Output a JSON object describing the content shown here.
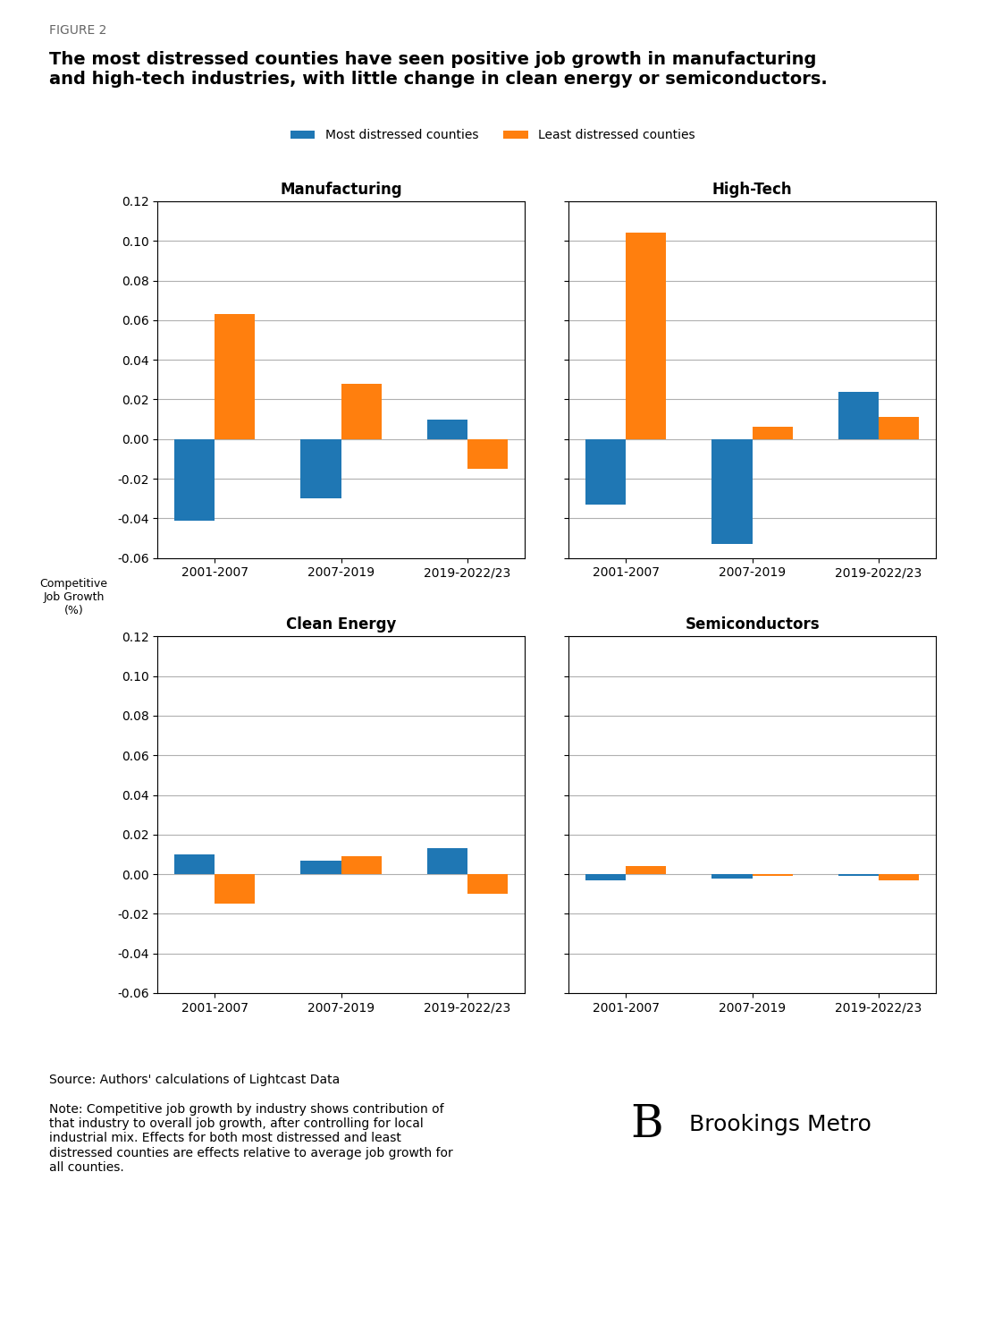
{
  "title": "The most distressed counties have seen positive job growth in manufacturing\nand high-tech industries, with little change in clean energy or semiconductors.",
  "ylabel": "Competitive\nJob Growth\n(%)",
  "legend": "upper center",
  "annotations": [
    "FIGURE 2",
    "Source: Authors' calculations of Lightcast Data",
    "Note: Competitive job growth by industry shows contribution of\nthat industry to overall job growth, after controlling for local\nindustrial mix. Effects for both most distressed and least\ndistressed counties are effects relative to average job growth for\nall counties.",
    "B",
    "Brookings Metro"
  ],
  "chart_data": [
    {
      "type": "bar",
      "title": "Manufacturing",
      "categories": [
        "2001-2007",
        "2007-2019",
        "2019-2022/23"
      ],
      "series": [
        {
          "name": "Most distressed counties",
          "values": [
            -0.041,
            -0.03,
            0.01
          ]
        },
        {
          "name": "Least distressed counties",
          "values": [
            0.063,
            0.028,
            -0.015
          ]
        }
      ],
      "ylim": [
        -0.06,
        0.12
      ],
      "yticks": [
        -0.06,
        -0.04,
        -0.02,
        {
          "value": 0.0,
          "label": "0.00"
        },
        0.02,
        0.04,
        0.06,
        0.08,
        {
          "value": 0.1,
          "label": "0.10"
        },
        0.12
      ],
      "grid": "y"
    },
    {
      "type": "bar",
      "title": "High-Tech",
      "categories": [
        "2001-2007",
        "2007-2019",
        "2019-2022/23"
      ],
      "series": [
        {
          "name": "Most distressed counties",
          "values": [
            -0.033,
            -0.053,
            0.024
          ]
        },
        {
          "name": "Least distressed counties",
          "values": [
            0.104,
            0.006,
            0.011
          ]
        }
      ],
      "ylim": [
        -0.06,
        0.12
      ],
      "yticks": [
        -0.06,
        -0.04,
        -0.02,
        {
          "value": 0.0,
          "label": "0.00"
        },
        0.02,
        0.04,
        0.06,
        0.08,
        {
          "value": 0.1,
          "label": "0.10"
        },
        0.12
      ],
      "grid": "y",
      "tick_labels": "x"
    },
    {
      "type": "bar",
      "title": "Clean Energy",
      "categories": [
        "2001-2007",
        "2007-2019",
        "2019-2022/23"
      ],
      "series": [
        {
          "name": "Most distressed counties",
          "values": [
            0.01,
            0.007,
            0.013
          ]
        },
        {
          "name": "Least distressed counties",
          "values": [
            -0.015,
            0.009,
            -0.01
          ]
        }
      ],
      "ylim": [
        -0.06,
        0.12
      ],
      "yticks": [
        -0.06,
        -0.04,
        -0.02,
        {
          "value": 0.0,
          "label": "0.00"
        },
        0.02,
        0.04,
        0.06,
        0.08,
        {
          "value": 0.1,
          "label": "0.10"
        },
        0.12
      ],
      "grid": "y"
    },
    {
      "type": "bar",
      "title": "Semiconductors",
      "categories": [
        "2001-2007",
        "2007-2019",
        "2019-2022/23"
      ],
      "series": [
        {
          "name": "Most distressed counties",
          "values": [
            -0.003,
            -0.002,
            -0.001
          ]
        },
        {
          "name": "Least distressed counties",
          "values": [
            0.004,
            -0.001,
            -0.003
          ]
        }
      ],
      "ylim": [
        -0.06,
        0.12
      ],
      "yticks": [
        -0.06,
        -0.04,
        -0.02,
        {
          "value": 0.0,
          "label": "0.00"
        },
        0.02,
        0.04,
        0.06,
        0.08,
        {
          "value": 0.1,
          "label": "0.10"
        },
        0.12
      ],
      "grid": "y",
      "tick_labels": "x"
    }
  ]
}
